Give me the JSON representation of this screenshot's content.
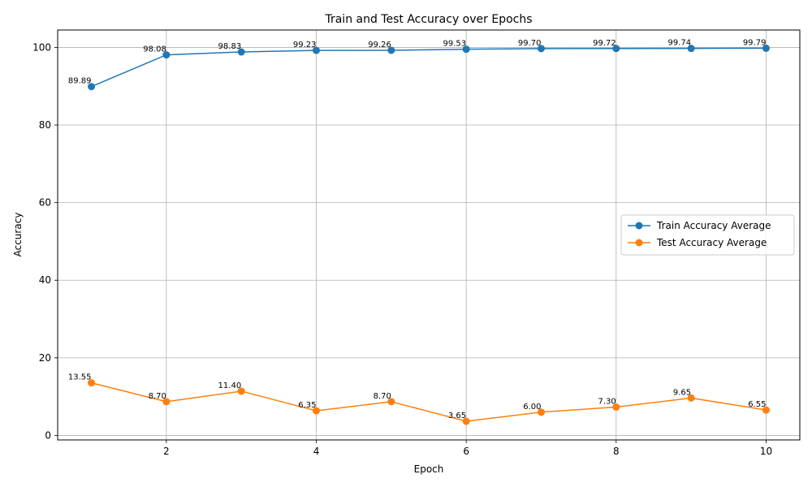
{
  "chart_data": {
    "type": "line",
    "title": "Train and Test Accuracy over Epochs",
    "xlabel": "Epoch",
    "ylabel": "Accuracy",
    "x": [
      1,
      2,
      3,
      4,
      5,
      6,
      7,
      8,
      9,
      10
    ],
    "xlim": [
      0.55,
      10.45
    ],
    "ylim": [
      -1.16,
      104.48
    ],
    "xticks": [
      2,
      4,
      6,
      8,
      10
    ],
    "yticks": [
      0,
      20,
      40,
      60,
      80,
      100
    ],
    "grid": true,
    "legend_position": "center-right",
    "series": [
      {
        "name": "Train Accuracy Average",
        "color": "#1f77b4",
        "values": [
          89.89,
          98.08,
          98.83,
          99.23,
          99.26,
          99.53,
          99.7,
          99.72,
          99.74,
          99.79
        ],
        "labels": [
          "89.89",
          "98.08",
          "98.83",
          "99.23",
          "99.26",
          "99.53",
          "99.70",
          "99.72",
          "99.74",
          "99.79"
        ]
      },
      {
        "name": "Test Accuracy Average",
        "color": "#ff7f0e",
        "values": [
          13.55,
          8.7,
          11.4,
          6.35,
          8.7,
          3.65,
          6.0,
          7.3,
          9.65,
          6.55
        ],
        "labels": [
          "13.55",
          "8.70",
          "11.40",
          "6.35",
          "8.70",
          "3.65",
          "6.00",
          "7.30",
          "9.65",
          "6.55"
        ]
      }
    ]
  }
}
